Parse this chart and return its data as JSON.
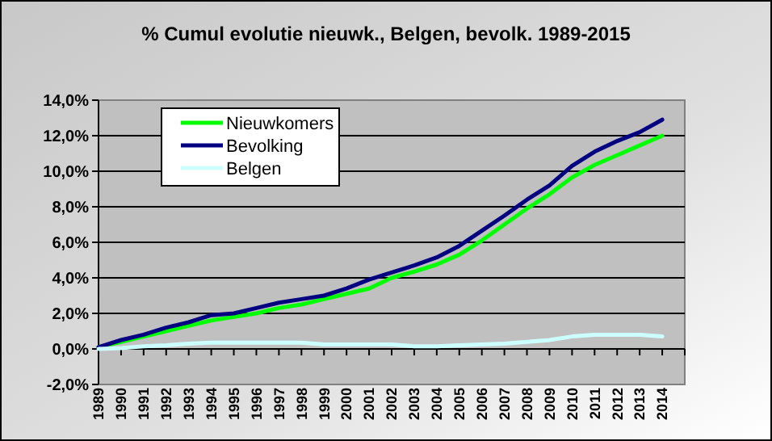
{
  "chart_data": {
    "type": "line",
    "title": "% Cumul evolutie nieuwk., Belgen, bevolk.  1989-2015",
    "categories": [
      "1989",
      "1990",
      "1991",
      "1992",
      "1993",
      "1994",
      "1995",
      "1996",
      "1997",
      "1998",
      "1999",
      "2000",
      "2001",
      "2002",
      "2003",
      "2004",
      "2005",
      "2006",
      "2007",
      "2008",
      "2009",
      "2010",
      "2011",
      "2012",
      "2013",
      "2014"
    ],
    "series": [
      {
        "name": "Nieuwkomers",
        "color": "#00ff00",
        "values": [
          0.1,
          0.4,
          0.7,
          1.0,
          1.3,
          1.6,
          1.8,
          2.0,
          2.3,
          2.5,
          2.8,
          3.1,
          3.4,
          4.0,
          4.35,
          4.75,
          5.3,
          6.1,
          7.0,
          7.9,
          8.7,
          9.65,
          10.35,
          10.9,
          11.45,
          12.0
        ]
      },
      {
        "name": "Bevolking",
        "color": "#000080",
        "values": [
          0.1,
          0.5,
          0.8,
          1.2,
          1.5,
          1.9,
          2.0,
          2.3,
          2.6,
          2.8,
          3.0,
          3.4,
          3.9,
          4.3,
          4.7,
          5.15,
          5.8,
          6.65,
          7.5,
          8.4,
          9.2,
          10.3,
          11.1,
          11.7,
          12.2,
          12.9
        ]
      },
      {
        "name": "Belgen",
        "color": "#ccffff",
        "values": [
          0.0,
          0.05,
          0.15,
          0.2,
          0.3,
          0.35,
          0.35,
          0.35,
          0.35,
          0.35,
          0.25,
          0.25,
          0.25,
          0.25,
          0.15,
          0.15,
          0.2,
          0.25,
          0.3,
          0.4,
          0.5,
          0.7,
          0.8,
          0.8,
          0.8,
          0.7
        ]
      }
    ],
    "ylim": [
      -2,
      14
    ],
    "yticks": [
      {
        "value": -2,
        "label": "-2,0%"
      },
      {
        "value": 0,
        "label": "0,0%"
      },
      {
        "value": 2,
        "label": "2,0%"
      },
      {
        "value": 4,
        "label": "4,0%"
      },
      {
        "value": 6,
        "label": "6,0%"
      },
      {
        "value": 8,
        "label": "8,0%"
      },
      {
        "value": 10,
        "label": "10,0%"
      },
      {
        "value": 12,
        "label": "12,0%"
      },
      {
        "value": 14,
        "label": "14,0%"
      }
    ],
    "grid": "y",
    "legend": "top left",
    "marker": "none",
    "line_style": "solid"
  }
}
